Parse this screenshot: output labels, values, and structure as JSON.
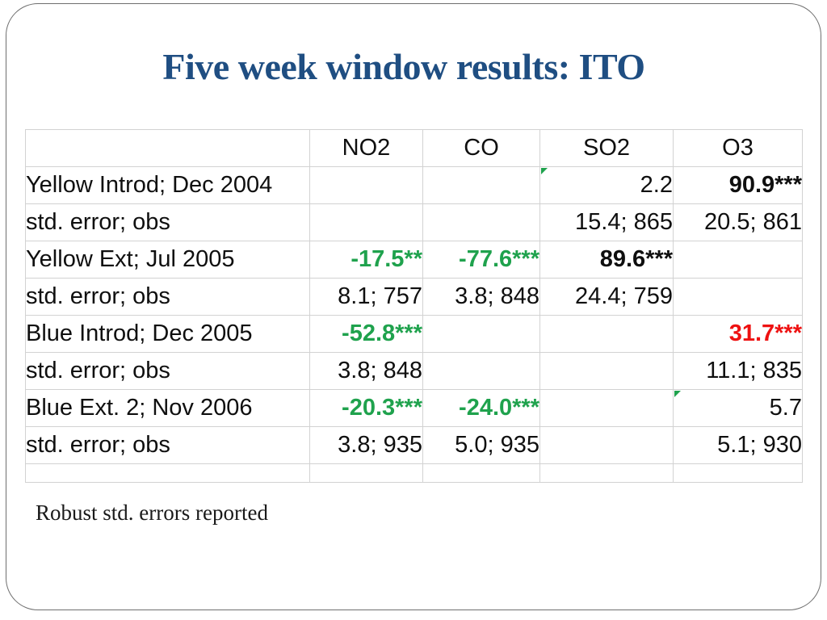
{
  "slide": {
    "title": "Five week window results: ITO",
    "footnote": "Robust std. errors reported"
  },
  "colors": {
    "title_blue": "#1f4e82",
    "positive_green": "#1fa24d",
    "negative_red": "#ee1111",
    "grid_gray": "#d2d2d2",
    "frame_gray": "#6e6e6e"
  },
  "table": {
    "columns": [
      "",
      "NO2",
      "CO",
      "SO2",
      "O3"
    ],
    "rows": [
      {
        "label": "Yellow Introd; Dec 2004",
        "cells": [
          {
            "text": ""
          },
          {
            "text": ""
          },
          {
            "text": "2.2",
            "flag": true
          },
          {
            "text": "90.9***",
            "style": "bold"
          }
        ]
      },
      {
        "label": "std. error; obs",
        "cells": [
          {
            "text": ""
          },
          {
            "text": ""
          },
          {
            "text": "15.4; 865"
          },
          {
            "text": "20.5; 861"
          }
        ]
      },
      {
        "label": "Yellow Ext; Jul 2005",
        "cells": [
          {
            "text": "-17.5**",
            "style": "green"
          },
          {
            "text": "-77.6***",
            "style": "green"
          },
          {
            "text": "89.6***",
            "style": "bold"
          },
          {
            "text": ""
          }
        ]
      },
      {
        "label": "std. error; obs",
        "cells": [
          {
            "text": "8.1; 757"
          },
          {
            "text": "3.8; 848"
          },
          {
            "text": "24.4; 759"
          },
          {
            "text": ""
          }
        ]
      },
      {
        "label": "Blue Introd; Dec 2005",
        "cells": [
          {
            "text": "-52.8***",
            "style": "green"
          },
          {
            "text": ""
          },
          {
            "text": ""
          },
          {
            "text": "31.7***",
            "style": "red"
          }
        ]
      },
      {
        "label": "std. error; obs",
        "cells": [
          {
            "text": "3.8; 848"
          },
          {
            "text": ""
          },
          {
            "text": ""
          },
          {
            "text": "11.1; 835"
          }
        ]
      },
      {
        "label": "Blue Ext. 2; Nov 2006",
        "cells": [
          {
            "text": "-20.3***",
            "style": "green"
          },
          {
            "text": "-24.0***",
            "style": "green"
          },
          {
            "text": ""
          },
          {
            "text": "5.7",
            "flag": true
          }
        ]
      },
      {
        "label": "std. error; obs",
        "cells": [
          {
            "text": "3.8; 935"
          },
          {
            "text": "5.0; 935"
          },
          {
            "text": ""
          },
          {
            "text": "5.1; 930"
          }
        ]
      },
      {
        "label": "",
        "short": true,
        "cells": [
          {
            "text": ""
          },
          {
            "text": ""
          },
          {
            "text": ""
          },
          {
            "text": ""
          }
        ]
      }
    ]
  }
}
